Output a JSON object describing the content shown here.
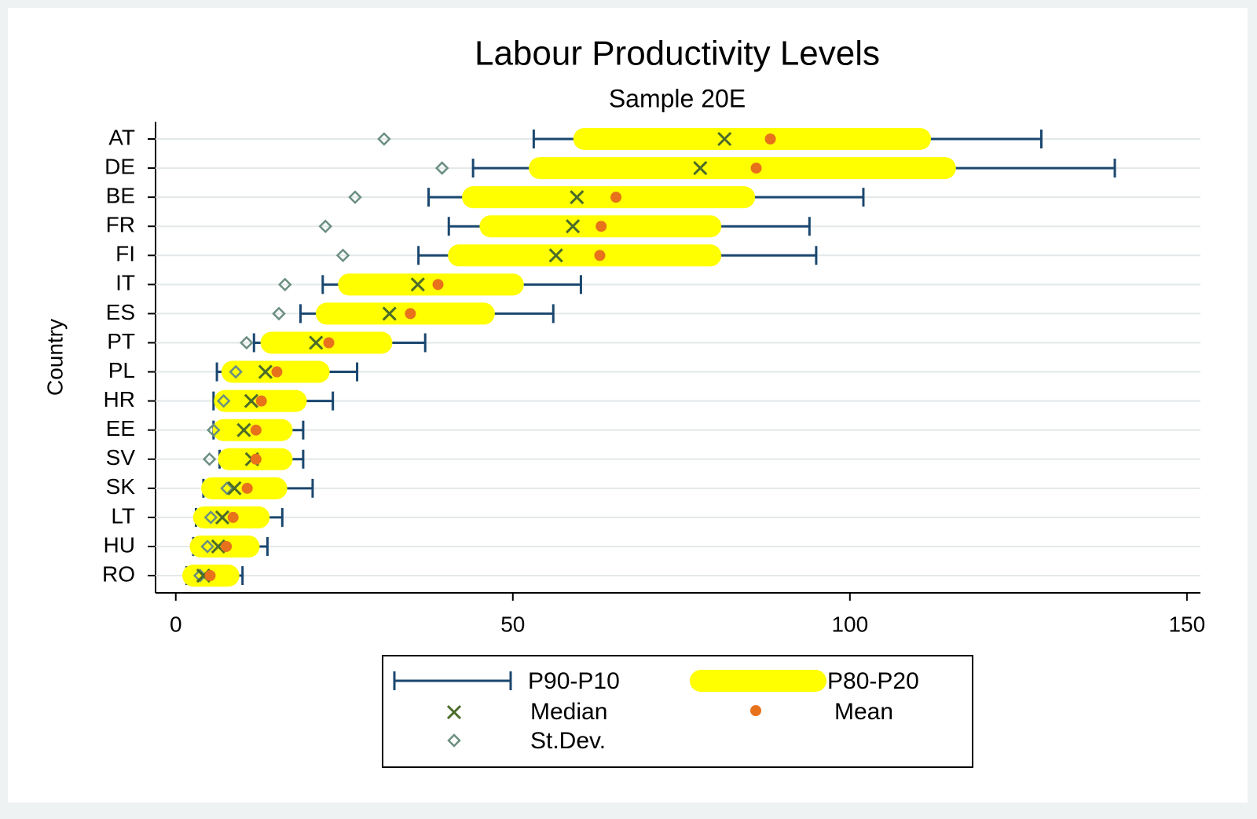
{
  "chart_data": {
    "type": "range",
    "title": "Labour Productivity Levels",
    "subtitle": "Sample 20E",
    "y_label": "Country",
    "categories": [
      "AT",
      "DE",
      "BE",
      "FR",
      "FI",
      "IT",
      "ES",
      "PT",
      "PL",
      "HR",
      "EE",
      "SV",
      "SK",
      "LT",
      "HU",
      "RO"
    ],
    "series": [
      {
        "name": "P90-P10",
        "color": "#1a476f",
        "low": [
          53.1,
          44.1,
          37.5,
          40.5,
          36.0,
          21.8,
          18.5,
          11.6,
          6.1,
          5.6,
          5.6,
          6.5,
          4.1,
          3.0,
          2.6,
          1.6
        ],
        "high": [
          128.4,
          139.3,
          102.0,
          94.0,
          95.0,
          60.1,
          56.0,
          37.0,
          26.9,
          23.3,
          18.9,
          18.9,
          20.3,
          15.8,
          13.6,
          9.9
        ]
      },
      {
        "name": "P80-P20",
        "color": "#ffff00",
        "low": [
          60.6,
          54.0,
          44.1,
          46.7,
          42.0,
          25.7,
          22.4,
          14.2,
          8.4,
          7.3,
          7.1,
          7.9,
          5.4,
          4.2,
          3.7,
          2.6
        ],
        "high": [
          110.4,
          114.1,
          84.3,
          79.3,
          79.3,
          50.0,
          45.7,
          30.5,
          21.2,
          17.8,
          15.7,
          15.7,
          14.9,
          12.3,
          10.8,
          7.8
        ]
      },
      {
        "name": "Median",
        "color": "#4b6b2a",
        "values": [
          81.4,
          77.8,
          59.5,
          58.9,
          56.4,
          35.9,
          31.7,
          20.8,
          13.3,
          11.2,
          10.1,
          11.3,
          8.7,
          6.9,
          6.3,
          4.1
        ]
      },
      {
        "name": "Mean",
        "color": "#e8711c",
        "values": [
          88.2,
          86.1,
          65.3,
          63.1,
          62.9,
          38.9,
          34.8,
          22.7,
          15.0,
          12.7,
          11.9,
          11.9,
          10.6,
          8.5,
          7.5,
          5.1
        ]
      },
      {
        "name": "St.Dev.",
        "color": "#6b8f80",
        "values": [
          30.9,
          39.5,
          26.6,
          22.2,
          24.8,
          16.2,
          15.3,
          10.5,
          8.9,
          7.1,
          5.6,
          5.0,
          7.6,
          5.2,
          4.7,
          3.6
        ]
      }
    ],
    "xlim": [
      -3,
      152
    ],
    "xticks": [
      0,
      50,
      100,
      150
    ],
    "grid": true
  }
}
